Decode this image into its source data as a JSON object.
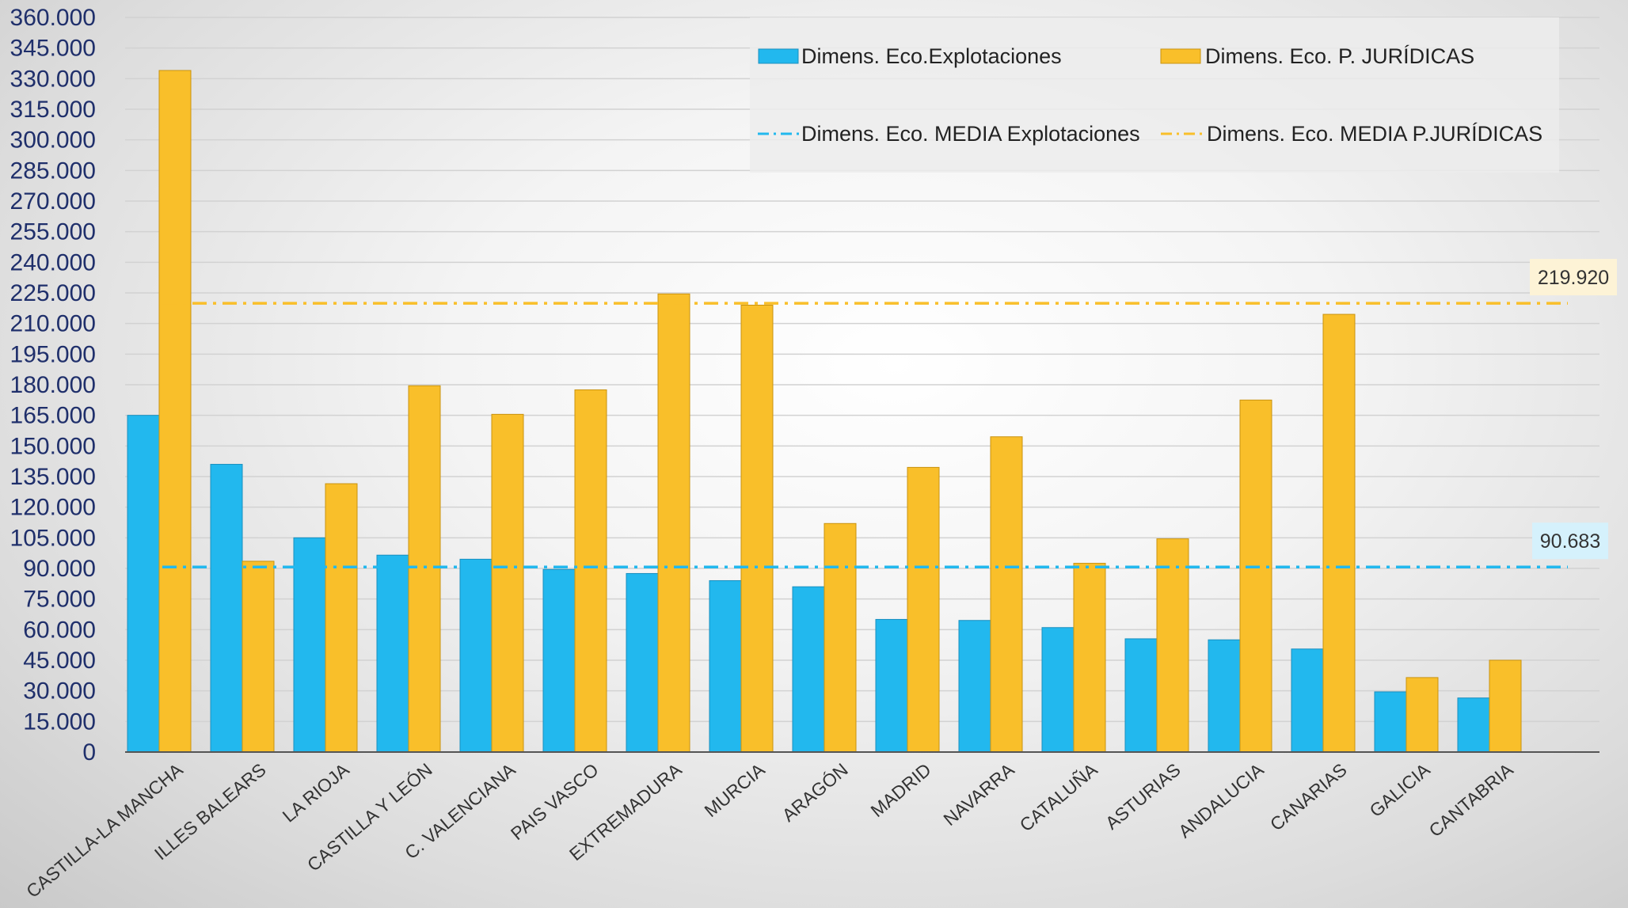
{
  "chart_data": {
    "type": "bar",
    "categories": [
      "CASTILLA-LA MANCHA",
      "ILLES BALEARS",
      "LA RIOJA",
      "CASTILLA Y LEÓN",
      "C. VALENCIANA",
      "PAIS VASCO",
      "EXTREMADURA",
      "MURCIA",
      "ARAGÓN",
      "MADRID",
      "NAVARRA",
      "CATALUÑA",
      "ASTURIAS",
      "ANDALUCIA",
      "CANARIAS",
      "GALICIA",
      "CANTABRIA"
    ],
    "series": [
      {
        "name": "Dimens. Eco.Explotaciones",
        "color": "#22b8ee",
        "values": [
          165000,
          141000,
          105000,
          96500,
          94500,
          89500,
          87500,
          84000,
          81000,
          65000,
          64500,
          61000,
          55500,
          55000,
          50500,
          29500,
          26500
        ]
      },
      {
        "name": "Dimens. Eco. P. JURÍDICAS",
        "color": "#f9bf2a",
        "values": [
          334000,
          93500,
          131500,
          179500,
          165500,
          177500,
          224500,
          219000,
          112000,
          139500,
          154500,
          92500,
          104500,
          172500,
          214500,
          36500,
          45000
        ]
      }
    ],
    "reference_lines": [
      {
        "name": "Dimens. Eco. MEDIA Explotaciones",
        "value": 90683,
        "label": "90.683",
        "color": "#22b8ee",
        "label_bg": "#d5f1fc"
      },
      {
        "name": "Dimens. Eco. MEDIA P.JURÍDICAS",
        "value": 219920,
        "label": "219.920",
        "color": "#f9bf2a",
        "label_bg": "#fdf3d6"
      }
    ],
    "yticks": [
      0,
      15000,
      30000,
      45000,
      60000,
      75000,
      90000,
      105000,
      120000,
      135000,
      150000,
      165000,
      180000,
      195000,
      210000,
      225000,
      240000,
      255000,
      270000,
      285000,
      300000,
      315000,
      330000,
      345000,
      360000
    ],
    "ytick_labels": [
      "0",
      "15.000",
      "30.000",
      "45.000",
      "60.000",
      "75.000",
      "90.000",
      "105.000",
      "120.000",
      "135.000",
      "150.000",
      "165.000",
      "180.000",
      "195.000",
      "210.000",
      "225.000",
      "240.000",
      "255.000",
      "270.000",
      "285.000",
      "300.000",
      "315.000",
      "330.000",
      "345.000",
      "360.000"
    ],
    "ylim": [
      0,
      360000
    ],
    "title": "",
    "xlabel": "",
    "ylabel": "",
    "grid": true,
    "legend_position": "top-right"
  }
}
